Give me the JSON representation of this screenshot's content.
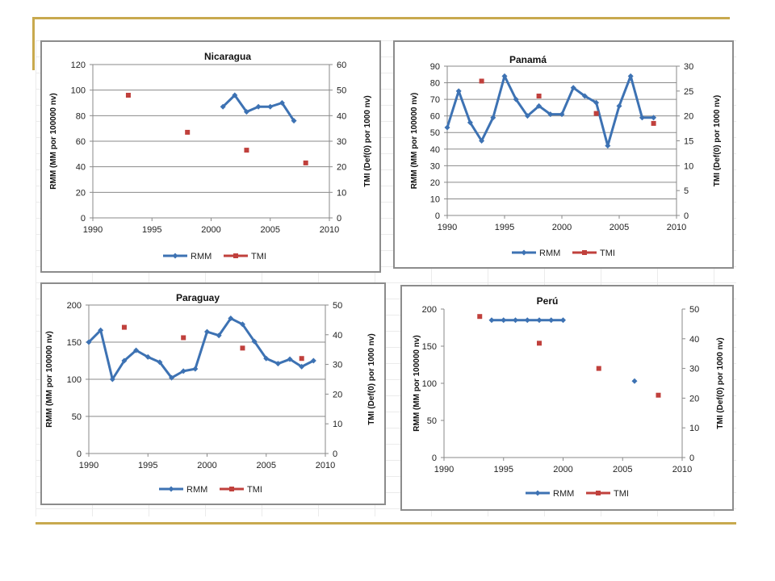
{
  "colors": {
    "rmm": "#3d72b3",
    "tmi": "#c0403c",
    "grid": "#8a8a8a",
    "frame": "#8c8c8c",
    "accent": "#c8a94e"
  },
  "chart_data": [
    {
      "type": "line",
      "title": "Nicaragua",
      "ylabel": "RMM (MM por 100000 nv)",
      "y2label": "TMI (Def(0) por 1000 nv)",
      "xlim": [
        1990,
        2010
      ],
      "xticks": [
        1990,
        1995,
        2000,
        2005,
        2010
      ],
      "ylim": [
        0,
        120
      ],
      "yticks": [
        0,
        20,
        40,
        60,
        80,
        100,
        120
      ],
      "y2lim": [
        0,
        60
      ],
      "y2ticks": [
        0,
        10,
        20,
        30,
        40,
        50,
        60
      ],
      "grid": "horizontal",
      "legend": "bottom",
      "series": [
        {
          "name": "RMM",
          "axis": "left",
          "style": "line",
          "x": [
            2001,
            2002,
            2003,
            2004,
            2005,
            2006,
            2007
          ],
          "y": [
            87,
            96,
            83,
            87,
            87,
            90,
            76
          ]
        },
        {
          "name": "TMI",
          "axis": "right",
          "style": "marker",
          "x": [
            1993,
            1998,
            2003,
            2008
          ],
          "y": [
            48,
            33.5,
            26.5,
            21.5
          ]
        }
      ]
    },
    {
      "type": "line",
      "title": "Panamá",
      "ylabel": "RMM (MM por 100000 nv)",
      "y2label": "TMI (Def(0) por 1000 nv)",
      "xlim": [
        1990,
        2010
      ],
      "xticks": [
        1990,
        1995,
        2000,
        2005,
        2010
      ],
      "ylim": [
        0,
        90
      ],
      "yticks": [
        0,
        10,
        20,
        30,
        40,
        50,
        60,
        70,
        80,
        90
      ],
      "y2lim": [
        0,
        30
      ],
      "y2ticks": [
        0,
        5,
        10,
        15,
        20,
        25,
        30
      ],
      "grid": "horizontal",
      "legend": "bottom",
      "series": [
        {
          "name": "RMM",
          "axis": "left",
          "style": "line",
          "x": [
            1990,
            1991,
            1992,
            1993,
            1994,
            1995,
            1996,
            1997,
            1998,
            1999,
            2000,
            2001,
            2002,
            2003,
            2004,
            2005,
            2006,
            2007,
            2008
          ],
          "y": [
            53,
            75,
            56,
            45,
            59,
            84,
            70,
            60,
            66,
            61,
            61,
            77,
            72,
            68,
            42,
            66,
            84,
            59,
            59
          ]
        },
        {
          "name": "TMI",
          "axis": "right",
          "style": "marker",
          "x": [
            1993,
            1998,
            2003,
            2008
          ],
          "y": [
            27,
            24,
            20.5,
            18.5
          ]
        }
      ]
    },
    {
      "type": "line",
      "title": "Paraguay",
      "ylabel": "RMM (MM por 100000 nv)",
      "y2label": "TMI (Def(0) por 1000 nv)",
      "xlim": [
        1990,
        2010
      ],
      "xticks": [
        1990,
        1995,
        2000,
        2005,
        2010
      ],
      "ylim": [
        0,
        200
      ],
      "yticks": [
        0,
        50,
        100,
        150,
        200
      ],
      "y2lim": [
        0,
        50
      ],
      "y2ticks": [
        0,
        10,
        20,
        30,
        40,
        50
      ],
      "grid": "horizontal",
      "legend": "bottom",
      "series": [
        {
          "name": "RMM",
          "axis": "left",
          "style": "line",
          "x": [
            1990,
            1991,
            1992,
            1993,
            1994,
            1995,
            1996,
            1997,
            1998,
            1999,
            2000,
            2001,
            2002,
            2003,
            2004,
            2005,
            2006,
            2007,
            2008,
            2009
          ],
          "y": [
            150,
            166,
            100,
            125,
            139,
            130,
            123,
            102,
            111,
            114,
            164,
            159,
            182,
            174,
            151,
            128,
            121,
            127,
            117,
            125
          ]
        },
        {
          "name": "TMI",
          "axis": "right",
          "style": "marker",
          "x": [
            1993,
            1998,
            2003,
            2008
          ],
          "y": [
            42.5,
            39,
            35.5,
            32
          ]
        }
      ]
    },
    {
      "type": "line",
      "title": "Perú",
      "ylabel": "RMM (MM por 100000 nv)",
      "y2label": "TMI (Def(0) por 1000 nv)",
      "xlim": [
        1990,
        2010
      ],
      "xticks": [
        1990,
        1995,
        2000,
        2005,
        2010
      ],
      "ylim": [
        0,
        200
      ],
      "yticks": [
        0,
        50,
        100,
        150,
        200
      ],
      "y2lim": [
        0,
        50
      ],
      "y2ticks": [
        0,
        10,
        20,
        30,
        40,
        50
      ],
      "grid": "none",
      "legend": "bottom",
      "series": [
        {
          "name": "RMM",
          "axis": "left",
          "style": "line",
          "x": [
            1994,
            1995,
            1996,
            1997,
            1998,
            1999,
            2000,
            2006
          ],
          "y": [
            185,
            185,
            185,
            185,
            185,
            185,
            185,
            103
          ]
        },
        {
          "name": "TMI",
          "axis": "right",
          "style": "marker",
          "x": [
            1993,
            1998,
            2003,
            2008
          ],
          "y": [
            47.5,
            38.5,
            30,
            21
          ]
        }
      ]
    }
  ]
}
